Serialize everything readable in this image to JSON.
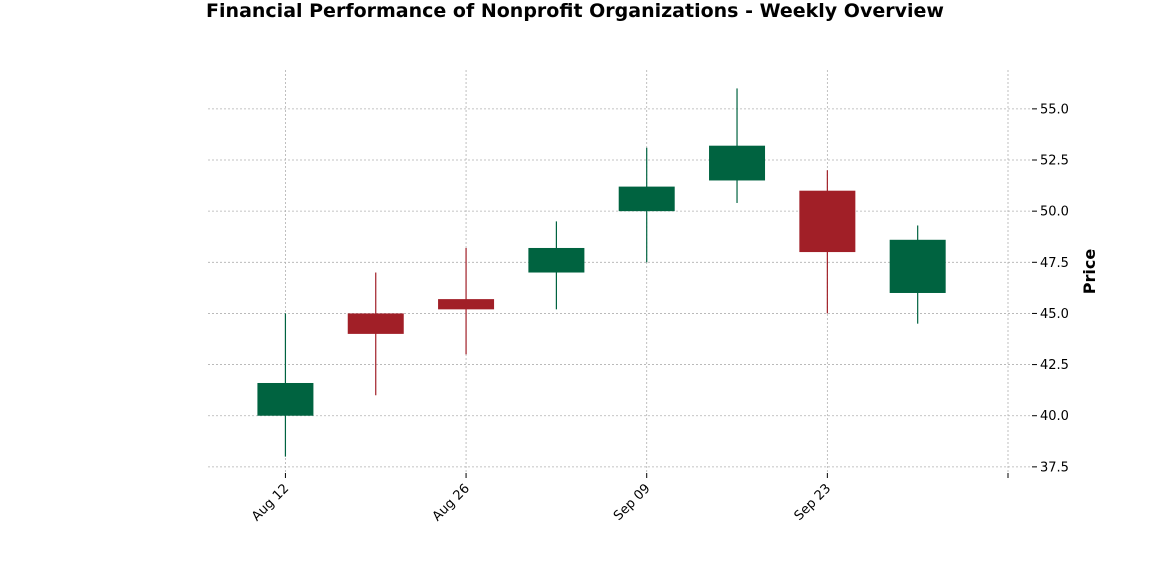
{
  "chart_data": {
    "type": "candlestick",
    "title": "Financial Performance of Nonprofit Organizations - Weekly Overview",
    "xlabel": "",
    "ylabel": "Price",
    "ylim": [
      37.2,
      56.9
    ],
    "yticks": [
      37.5,
      40.0,
      42.5,
      45.0,
      47.5,
      50.0,
      52.5,
      55.0
    ],
    "ytick_labels": [
      "37.5",
      "40.0",
      "42.5",
      "45.0",
      "47.5",
      "50.0",
      "52.5",
      "55.0"
    ],
    "x_date_range": [
      "2024-08-06",
      "2024-10-07"
    ],
    "xticks": [
      "2024-08-12",
      "2024-08-26",
      "2024-09-09",
      "2024-09-23",
      "2024-10-07"
    ],
    "xtick_labels": [
      "Aug 12",
      "Aug 26",
      "Sep 09",
      "Sep 23",
      ""
    ],
    "grid": true,
    "y_axis_side": "right",
    "colors": {
      "up": "#006340",
      "down": "#a11f27",
      "grid": "#b0b0b0"
    },
    "candles": [
      {
        "date": "2024-08-12",
        "open": 40.0,
        "high": 45.0,
        "low": 38.0,
        "close": 41.6
      },
      {
        "date": "2024-08-19",
        "open": 45.0,
        "high": 47.0,
        "low": 41.0,
        "close": 44.0
      },
      {
        "date": "2024-08-26",
        "open": 45.7,
        "high": 48.2,
        "low": 43.0,
        "close": 45.2
      },
      {
        "date": "2024-09-02",
        "open": 47.0,
        "high": 49.5,
        "low": 45.2,
        "close": 48.2
      },
      {
        "date": "2024-09-09",
        "open": 50.0,
        "high": 53.1,
        "low": 47.5,
        "close": 51.2
      },
      {
        "date": "2024-09-16",
        "open": 51.5,
        "high": 56.0,
        "low": 50.4,
        "close": 53.2
      },
      {
        "date": "2024-09-23",
        "open": 51.0,
        "high": 52.0,
        "low": 45.0,
        "close": 48.0
      },
      {
        "date": "2024-09-30",
        "open": 46.0,
        "high": 49.3,
        "low": 44.5,
        "close": 48.6
      }
    ]
  }
}
